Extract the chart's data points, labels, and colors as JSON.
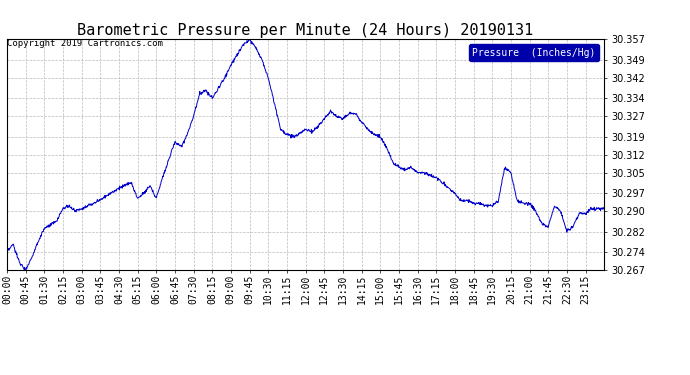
{
  "title": "Barometric Pressure per Minute (24 Hours) 20190131",
  "copyright_text": "Copyright 2019 Cartronics.com",
  "legend_label": "Pressure  (Inches/Hg)",
  "line_color": "#0000cc",
  "background_color": "#ffffff",
  "plot_bg_color": "#ffffff",
  "legend_bg_color": "#0000aa",
  "legend_text_color": "#ffffff",
  "grid_color": "#bbbbbb",
  "ylim": [
    30.267,
    30.357
  ],
  "yticks": [
    30.267,
    30.274,
    30.282,
    30.29,
    30.297,
    30.305,
    30.312,
    30.319,
    30.327,
    30.334,
    30.342,
    30.349,
    30.357
  ],
  "xtick_labels": [
    "00:00",
    "00:45",
    "01:30",
    "02:15",
    "03:00",
    "03:45",
    "04:30",
    "05:15",
    "06:00",
    "06:45",
    "07:30",
    "08:15",
    "09:00",
    "09:45",
    "10:30",
    "11:15",
    "12:00",
    "12:45",
    "13:30",
    "14:15",
    "15:00",
    "15:45",
    "16:30",
    "17:15",
    "18:00",
    "18:45",
    "19:30",
    "20:15",
    "21:00",
    "21:45",
    "22:30",
    "23:15"
  ],
  "title_fontsize": 11,
  "tick_fontsize": 7,
  "copyright_fontsize": 6.5
}
